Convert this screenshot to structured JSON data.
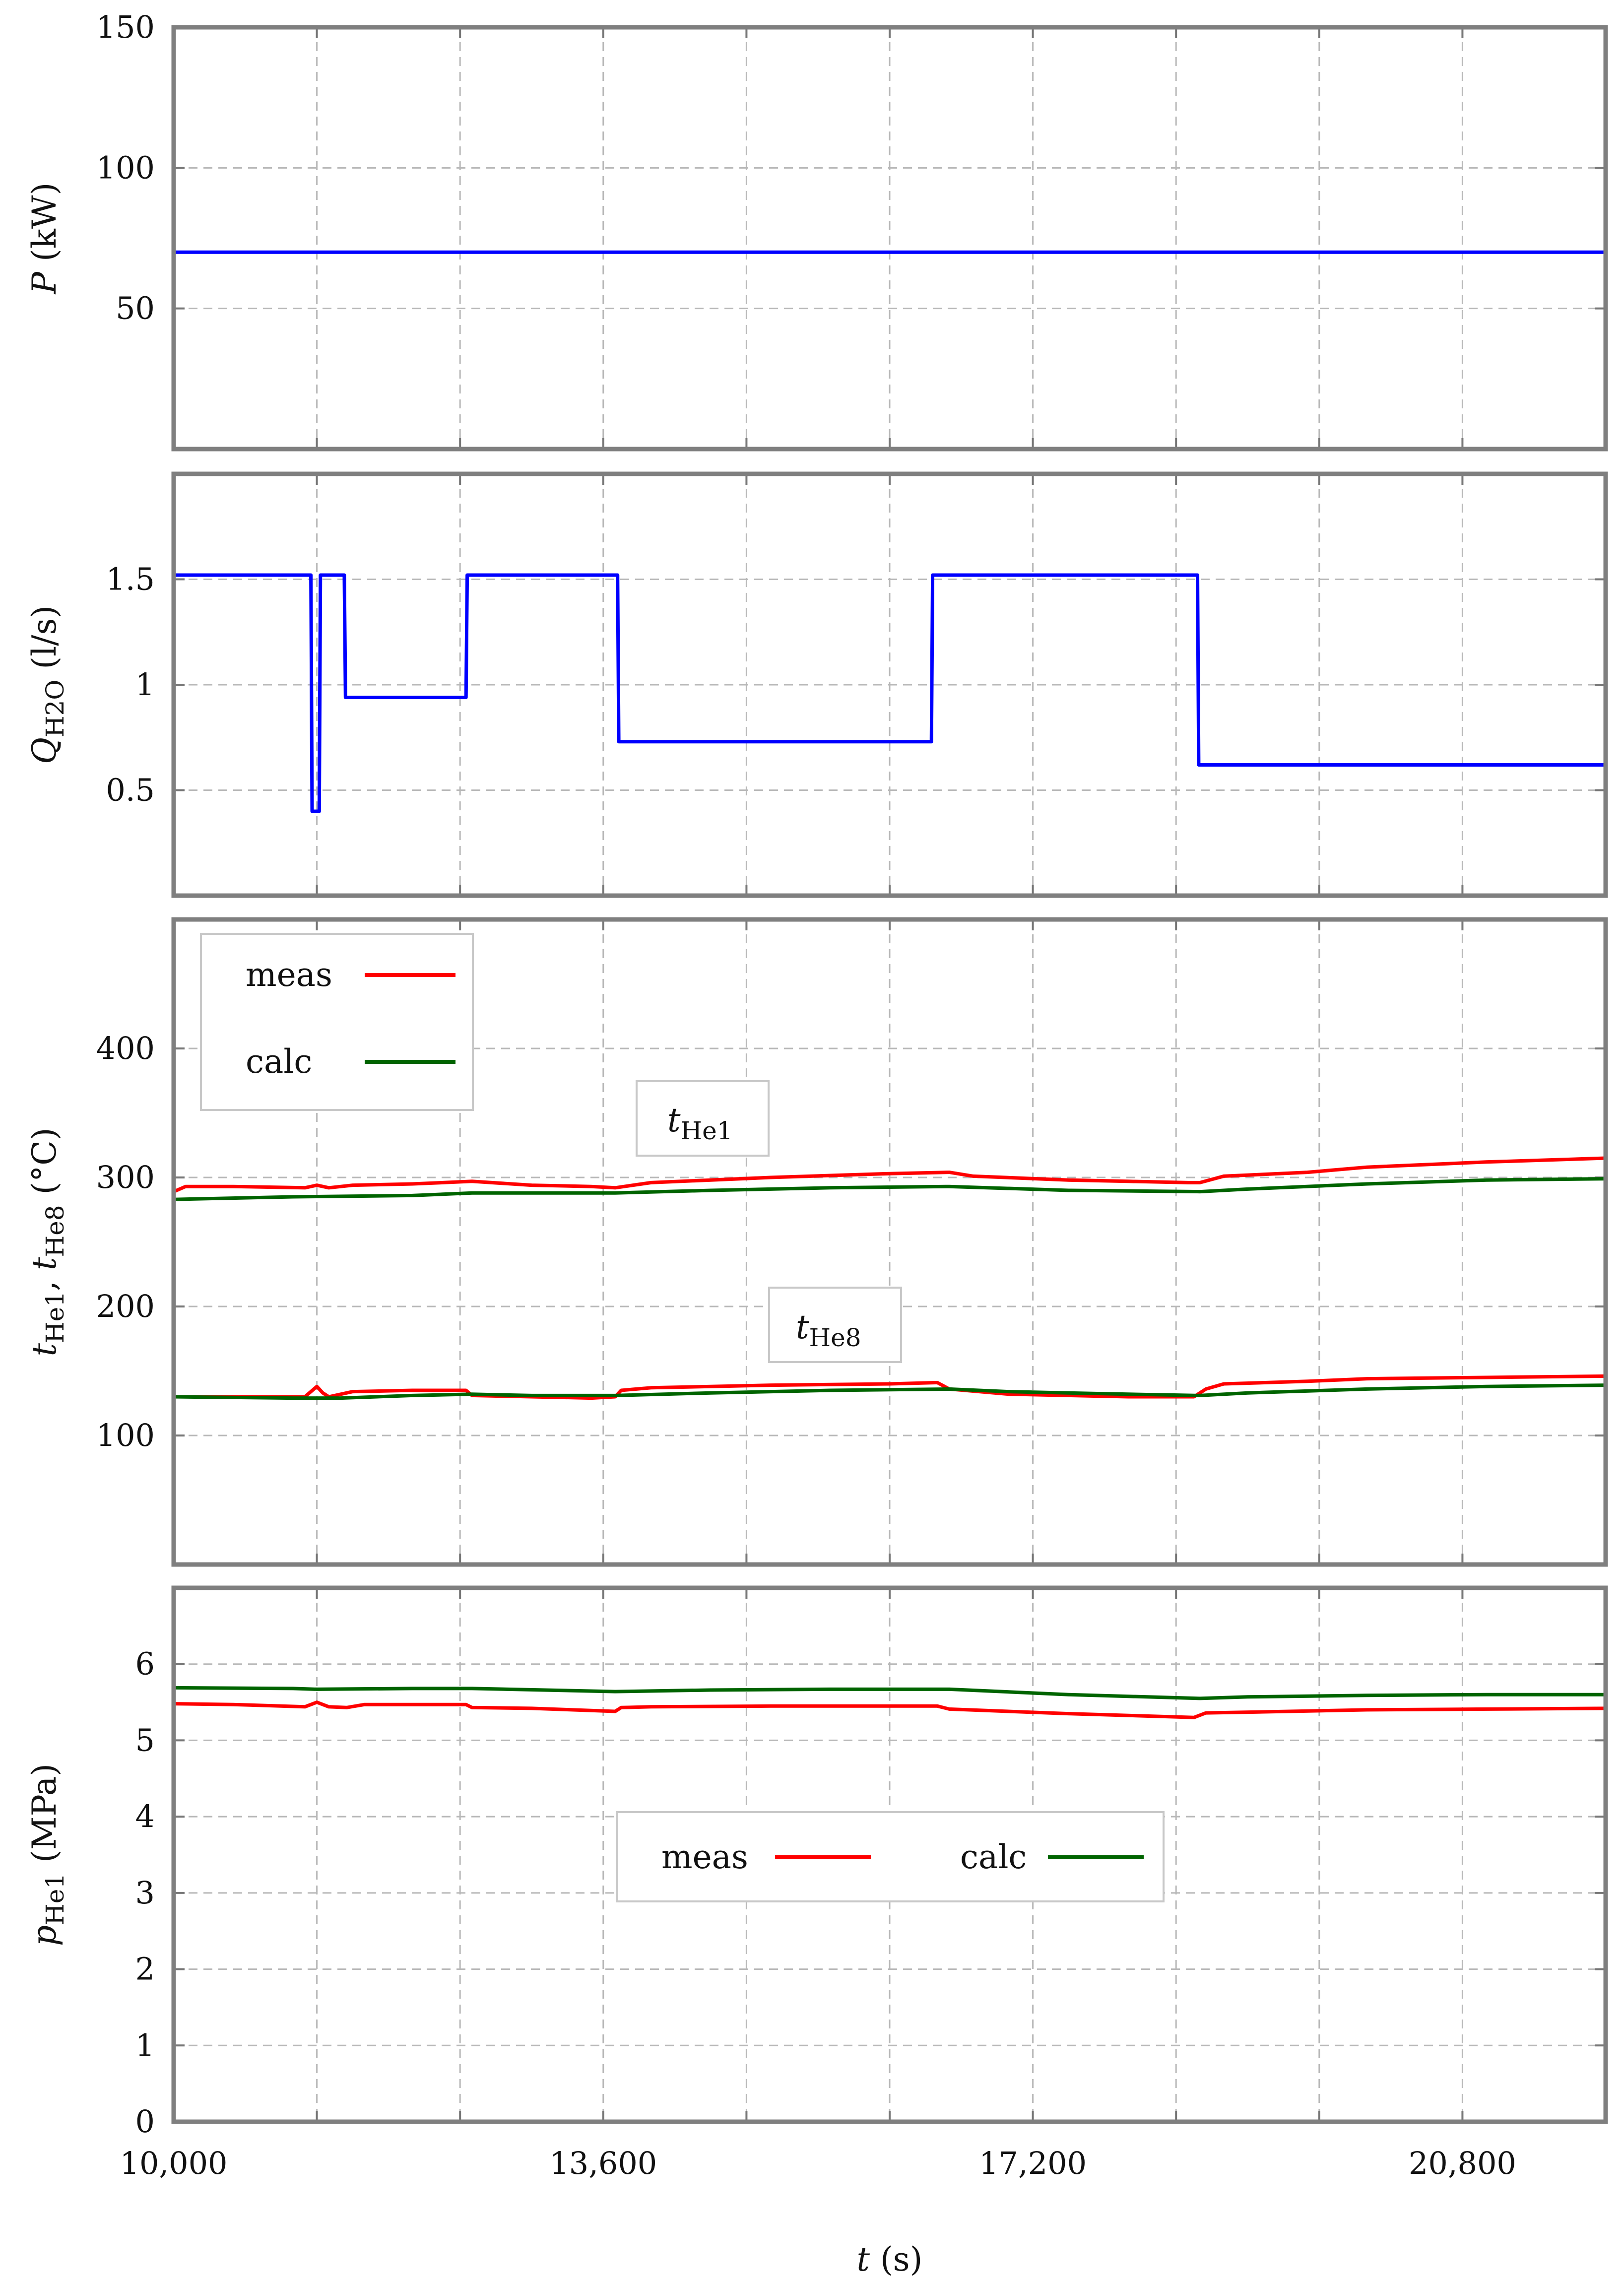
{
  "chart_data": [
    {
      "type": "line",
      "panel": "power",
      "ylabel_symbol": "P",
      "ylabel_unit": "(kW)",
      "xlim": [
        10000,
        22000
      ],
      "ylim": [
        0,
        150
      ],
      "yticks": [
        50,
        100,
        150
      ],
      "ytick_labels": [
        "50",
        "100",
        "150"
      ],
      "series": [
        {
          "name": "P",
          "color": "#0000ff",
          "x": [
            10000,
            22000
          ],
          "y": [
            70,
            70
          ]
        }
      ]
    },
    {
      "type": "line",
      "panel": "flow",
      "ylabel_symbol": "Q",
      "ylabel_sub": "H2O",
      "ylabel_unit": "(l/s)",
      "xlim": [
        10000,
        22000
      ],
      "ylim": [
        0,
        2
      ],
      "yticks": [
        0.5,
        1,
        1.5
      ],
      "ytick_labels": [
        "0.5",
        "1",
        "1.5"
      ],
      "series": [
        {
          "name": "QH2O",
          "color": "#0000ff",
          "x": [
            10000,
            11150,
            11160,
            11220,
            11230,
            11430,
            11440,
            12450,
            12460,
            13720,
            13730,
            16350,
            16360,
            18580,
            18590,
            22000
          ],
          "y": [
            1.52,
            1.52,
            0.4,
            0.4,
            1.52,
            1.52,
            0.94,
            0.94,
            1.52,
            1.52,
            0.73,
            0.73,
            1.52,
            1.52,
            0.62,
            0.62
          ]
        }
      ]
    },
    {
      "type": "line",
      "panel": "temperature",
      "ylabel_symbol_1": "t",
      "ylabel_sub_1": "He1",
      "ylabel_sep": ", ",
      "ylabel_symbol_2": "t",
      "ylabel_sub_2": "He8",
      "ylabel_unit": "(°C)",
      "xlim": [
        10000,
        22000
      ],
      "ylim": [
        0,
        500
      ],
      "yticks": [
        100,
        200,
        300,
        400
      ],
      "ytick_labels": [
        "100",
        "200",
        "300",
        "400"
      ],
      "legend": [
        {
          "label": "meas",
          "color": "#ff0000"
        },
        {
          "label": "calc",
          "color": "#006400"
        }
      ],
      "annotations": [
        {
          "symbol": "t",
          "sub": "He1"
        },
        {
          "symbol": "t",
          "sub": "He8"
        }
      ],
      "series": [
        {
          "name": "tHe1 meas",
          "color": "#ff0000",
          "x": [
            10000,
            10100,
            10500,
            11100,
            11200,
            11300,
            11500,
            12000,
            12500,
            13000,
            13500,
            13700,
            14000,
            15000,
            16000,
            16500,
            16700,
            17500,
            18000,
            18500,
            18600,
            18800,
            19500,
            20000,
            21000,
            22000
          ],
          "y": [
            289,
            293,
            293,
            292,
            294,
            292,
            294,
            295,
            297,
            294,
            293,
            292,
            296,
            300,
            303,
            304,
            301,
            298,
            297,
            296,
            296,
            301,
            304,
            308,
            312,
            315
          ]
        },
        {
          "name": "tHe1 calc",
          "color": "#006400",
          "x": [
            10000,
            11000,
            12000,
            12500,
            13000,
            13700,
            14500,
            15500,
            16500,
            17500,
            18600,
            19000,
            20000,
            21000,
            22000
          ],
          "y": [
            283,
            285,
            286,
            288,
            288,
            288,
            290,
            292,
            293,
            290,
            289,
            291,
            295,
            298,
            299
          ]
        },
        {
          "name": "tHe8 meas",
          "color": "#ff0000",
          "x": [
            10000,
            10500,
            11100,
            11200,
            11250,
            11300,
            11400,
            11500,
            12000,
            12450,
            12500,
            13000,
            13500,
            13700,
            13750,
            14000,
            15000,
            16000,
            16400,
            16500,
            17000,
            18000,
            18550,
            18650,
            18800,
            19500,
            20000,
            21000,
            22000
          ],
          "y": [
            130,
            130,
            130,
            138,
            133,
            130,
            132,
            134,
            135,
            135,
            131,
            130,
            129,
            130,
            135,
            137,
            139,
            140,
            141,
            136,
            132,
            130,
            130,
            136,
            140,
            142,
            144,
            145,
            146
          ]
        },
        {
          "name": "tHe8 calc",
          "color": "#006400",
          "x": [
            10000,
            11000,
            11400,
            12000,
            12500,
            13000,
            13700,
            14500,
            15500,
            16500,
            17000,
            18000,
            18600,
            19000,
            20000,
            21000,
            22000
          ],
          "y": [
            130,
            129,
            129,
            131,
            132,
            131,
            131,
            133,
            135,
            136,
            134,
            132,
            131,
            133,
            136,
            138,
            139
          ]
        }
      ]
    },
    {
      "type": "line",
      "panel": "pressure",
      "ylabel_symbol": "p",
      "ylabel_sub": "He1",
      "ylabel_unit": "(MPa)",
      "xlim": [
        10000,
        22000
      ],
      "ylim": [
        0,
        7
      ],
      "yticks": [
        0,
        1,
        2,
        3,
        4,
        5,
        6
      ],
      "ytick_labels": [
        "0",
        "1",
        "2",
        "3",
        "4",
        "5",
        "6"
      ],
      "xticks": [
        10000,
        13600,
        17200,
        20800
      ],
      "xtick_labels": [
        "10,000",
        "13,600",
        "17,200",
        "20,800"
      ],
      "xlabel_symbol": "t",
      "xlabel_unit": "(s)",
      "legend": [
        {
          "label": "meas",
          "color": "#ff0000"
        },
        {
          "label": "calc",
          "color": "#006400"
        }
      ],
      "series": [
        {
          "name": "pHe1 meas",
          "color": "#ff0000",
          "x": [
            10000,
            10500,
            11100,
            11200,
            11300,
            11450,
            11600,
            12450,
            12500,
            13000,
            13700,
            13750,
            14000,
            15000,
            16000,
            16400,
            16500,
            17500,
            18550,
            18650,
            19000,
            20000,
            21000,
            22000
          ],
          "y": [
            5.48,
            5.47,
            5.44,
            5.5,
            5.44,
            5.43,
            5.47,
            5.47,
            5.43,
            5.42,
            5.38,
            5.43,
            5.44,
            5.45,
            5.45,
            5.45,
            5.41,
            5.35,
            5.3,
            5.36,
            5.37,
            5.4,
            5.41,
            5.42
          ]
        },
        {
          "name": "pHe1 calc",
          "color": "#006400",
          "x": [
            10000,
            11000,
            11200,
            12000,
            12500,
            13700,
            14500,
            15500,
            16500,
            17500,
            18600,
            19000,
            20000,
            21000,
            22000
          ],
          "y": [
            5.69,
            5.68,
            5.67,
            5.68,
            5.68,
            5.64,
            5.66,
            5.67,
            5.67,
            5.6,
            5.55,
            5.57,
            5.59,
            5.6,
            5.6
          ]
        }
      ]
    }
  ]
}
